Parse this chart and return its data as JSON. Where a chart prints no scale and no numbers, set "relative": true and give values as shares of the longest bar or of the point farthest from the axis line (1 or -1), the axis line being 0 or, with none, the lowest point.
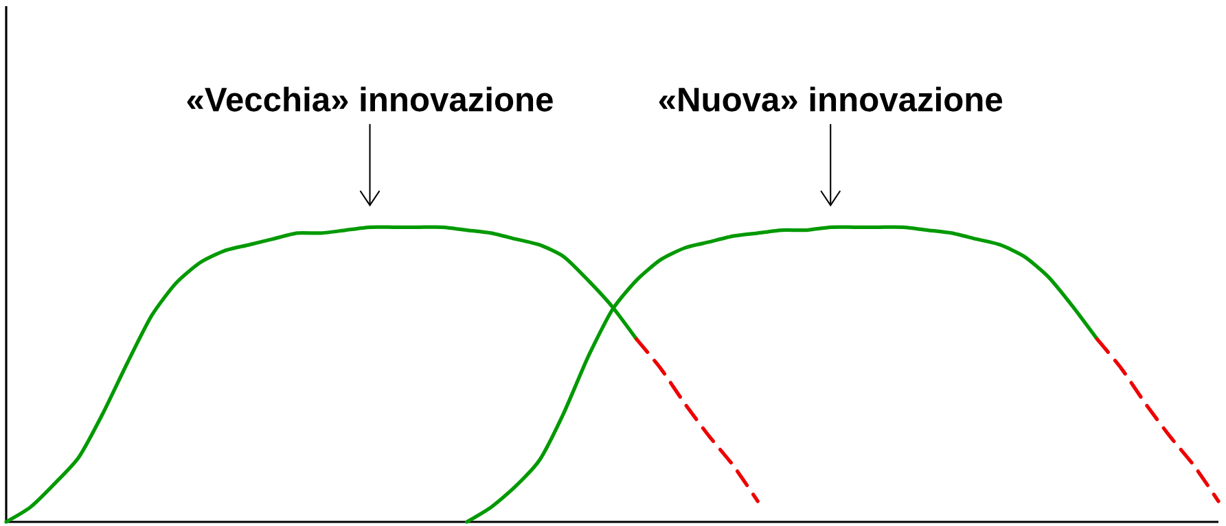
{
  "chart_data": {
    "type": "line",
    "relative": true,
    "tick_labels": false,
    "categories": [
      null,
      null,
      null,
      null,
      null,
      null,
      null,
      null,
      null,
      null,
      null,
      null,
      null,
      null,
      null,
      null,
      null,
      null,
      null,
      null,
      null,
      null,
      null,
      null,
      null,
      null,
      null,
      null,
      null,
      null,
      null,
      null,
      null,
      null,
      null,
      null,
      null,
      null,
      null,
      null,
      null,
      null,
      null,
      null,
      null,
      null,
      null,
      null,
      null,
      null,
      null
    ],
    "annotations": [
      "«Vecchia» innovazione",
      "«Nuova» innovazione"
    ],
    "series": [
      {
        "color": "#009900",
        "line_style": "solid",
        "values": [
          0,
          0.05,
          0.13,
          0.22,
          0.37,
          0.54,
          0.7,
          0.81,
          0.88,
          0.92,
          0.94,
          0.96,
          0.98,
          0.98,
          0.99,
          1.0,
          1.0,
          1.0,
          1.0,
          0.99,
          0.98,
          0.96,
          0.94,
          0.9,
          0.82,
          0.73,
          0.62,
          null,
          null,
          null,
          null,
          null,
          null,
          null,
          null,
          null,
          null,
          null,
          null,
          null,
          null,
          null,
          null,
          null,
          null,
          null,
          null,
          null,
          null,
          null,
          null
        ]
      },
      {
        "color": "#ee0000",
        "line_style": "dashed",
        "values": [
          null,
          null,
          null,
          null,
          null,
          null,
          null,
          null,
          null,
          null,
          null,
          null,
          null,
          null,
          null,
          null,
          null,
          null,
          null,
          null,
          null,
          null,
          null,
          null,
          null,
          null,
          0.62,
          0.52,
          0.4,
          0.29,
          0.19,
          0.07,
          null,
          null,
          null,
          null,
          null,
          null,
          null,
          null,
          null,
          null,
          null,
          null,
          null,
          null,
          null,
          null,
          null,
          null,
          null
        ]
      },
      {
        "color": "#009900",
        "line_style": "solid",
        "values": [
          null,
          null,
          null,
          null,
          null,
          null,
          null,
          null,
          null,
          null,
          null,
          null,
          null,
          null,
          null,
          null,
          null,
          null,
          null,
          0,
          0.05,
          0.12,
          0.21,
          0.37,
          0.56,
          0.72,
          0.82,
          0.89,
          0.93,
          0.95,
          0.97,
          0.98,
          0.99,
          0.99,
          1.0,
          1.0,
          1.0,
          1.0,
          0.99,
          0.98,
          0.96,
          0.94,
          0.9,
          0.83,
          0.73,
          0.62,
          null,
          null,
          null,
          null,
          null
        ]
      },
      {
        "color": "#ee0000",
        "line_style": "dashed",
        "values": [
          null,
          null,
          null,
          null,
          null,
          null,
          null,
          null,
          null,
          null,
          null,
          null,
          null,
          null,
          null,
          null,
          null,
          null,
          null,
          null,
          null,
          null,
          null,
          null,
          null,
          null,
          null,
          null,
          null,
          null,
          null,
          null,
          null,
          null,
          null,
          null,
          null,
          null,
          null,
          null,
          null,
          null,
          null,
          null,
          null,
          0.62,
          0.52,
          0.4,
          0.29,
          0.19,
          0.07
        ]
      }
    ]
  }
}
